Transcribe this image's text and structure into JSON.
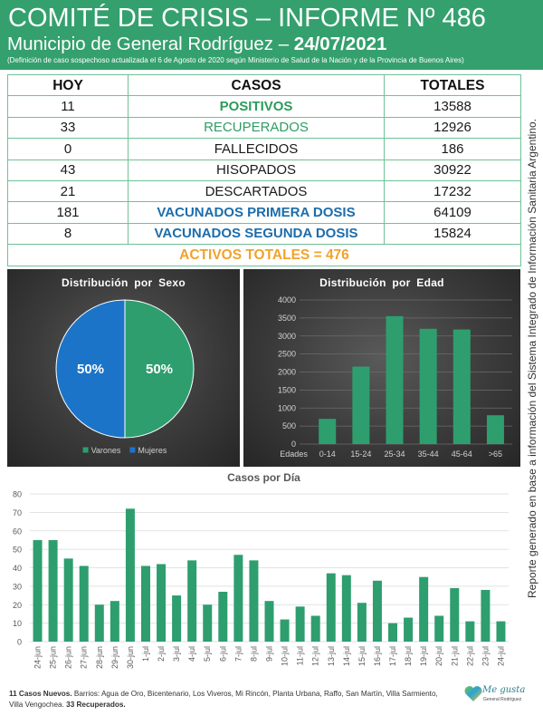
{
  "header": {
    "title": "COMITÉ DE CRISIS – INFORME Nº 486",
    "municipality": "Municipio de General Rodríguez – ",
    "date": "24/07/2021",
    "note": "(Definición de caso sospechoso actualizada el 6 de Agosto de 2020 según Ministerio de Salud de la Nación y de la Provincia de Buenos Aires)"
  },
  "table": {
    "columns": [
      "HOY",
      "CASOS",
      "TOTALES"
    ],
    "rows": [
      {
        "hoy": "11",
        "casos": "POSITIVOS",
        "totales": "13588"
      },
      {
        "hoy": "33",
        "casos": "RECUPERADOS",
        "totales": "12926"
      },
      {
        "hoy": "0",
        "casos": "FALLECIDOS",
        "totales": "186"
      },
      {
        "hoy": "43",
        "casos": "HISOPADOS",
        "totales": "30922"
      },
      {
        "hoy": "21",
        "casos": "DESCARTADOS",
        "totales": "17232"
      },
      {
        "hoy": "181",
        "casos": "VACUNADOS PRIMERA DOSIS",
        "totales": "64109"
      },
      {
        "hoy": "8",
        "casos": "VACUNADOS SEGUNDA DOSIS",
        "totales": "15824"
      }
    ],
    "activos": "ACTIVOS TOTALES = 476"
  },
  "side_note": "Reporte generado en base a información del Sistema Integrado de Información Sanitaria Argentino.",
  "chart_data": [
    {
      "type": "pie",
      "title": "Distribución por Sexo",
      "labels": [
        "Varones",
        "Mujeres"
      ],
      "values": [
        50,
        50
      ],
      "value_labels": [
        "50%",
        "50%"
      ],
      "colors": [
        "#2e9e6f",
        "#1b74c8"
      ],
      "legend_position": "bottom"
    },
    {
      "type": "bar",
      "title": "Distribución por Edad",
      "categories": [
        "Edades",
        "0-14",
        "15-24",
        "25-34",
        "35-44",
        "45-64",
        ">65"
      ],
      "values": [
        null,
        700,
        2150,
        3550,
        3200,
        3180,
        800
      ],
      "ylim": [
        0,
        4000
      ],
      "yticks": [
        0,
        500,
        1000,
        1500,
        2000,
        2500,
        3000,
        3500,
        4000
      ],
      "grid": true,
      "color": "#2e9e6f"
    },
    {
      "type": "bar",
      "title": "Casos por Día",
      "categories": [
        "24-jun",
        "25-jun",
        "26-jun",
        "27-jun",
        "28-jun",
        "29-jun",
        "30-jun",
        "1-jul",
        "2-jul",
        "3-jul",
        "4-jul",
        "5-jul",
        "6-jul",
        "7-jul",
        "8-jul",
        "9-jul",
        "10-jul",
        "11-jul",
        "12-jul",
        "13-jul",
        "14-jul",
        "15-jul",
        "16-jul",
        "17-jul",
        "18-jul",
        "19-jul",
        "20-jul",
        "21-jul",
        "22-jul",
        "23-jul",
        "24-jul"
      ],
      "values": [
        55,
        55,
        45,
        41,
        20,
        22,
        72,
        41,
        42,
        25,
        44,
        20,
        27,
        47,
        44,
        22,
        12,
        19,
        14,
        37,
        36,
        21,
        33,
        10,
        13,
        35,
        14,
        29,
        11,
        28,
        11
      ],
      "ylim": [
        0,
        80
      ],
      "yticks": [
        0,
        10,
        20,
        30,
        40,
        50,
        60,
        70,
        80
      ],
      "grid": true,
      "color": "#2e9e6f"
    }
  ],
  "footer": {
    "new_cases": "11 Casos Nuevos.",
    "barrios": "Barrios: Agua de Oro, Bicentenario, Los Viveros, Mi Rincón, Planta Urbana, Raffo, San Martín, Villa Sarmiento, Villa Vengochea.",
    "recovered": "33 Recuperados."
  },
  "logo": {
    "main": "Me gusta",
    "sub": "General Rodríguez"
  },
  "colors": {
    "header_bg": "#34a06e",
    "table_border": "#6fc296",
    "positivos": "#2b9b5c",
    "recuperados": "#2f9d63",
    "vacunados": "#1c6dab",
    "activos": "#f2a22b"
  }
}
